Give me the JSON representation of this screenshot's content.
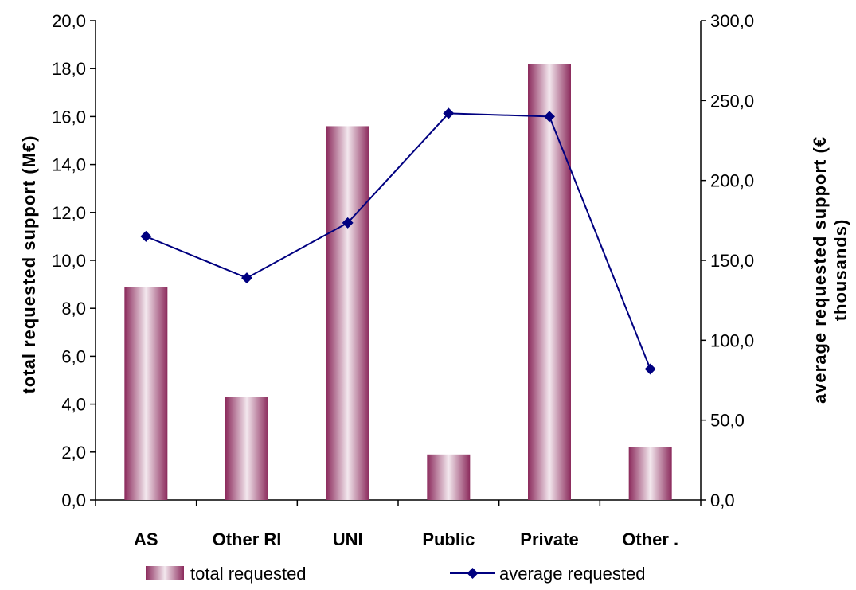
{
  "chart_data": {
    "type": "bar",
    "categories": [
      "AS",
      "Other RI",
      "UNI",
      "Public",
      "Private",
      "Other ."
    ],
    "series": [
      {
        "name": "total requested",
        "type": "bar",
        "axis": "left",
        "values": [
          8.9,
          4.3,
          15.6,
          1.9,
          18.2,
          2.2
        ]
      },
      {
        "name": "average requested",
        "type": "line",
        "axis": "right",
        "values": [
          165.0,
          139.0,
          173.5,
          242.0,
          240.0,
          82.0
        ]
      }
    ],
    "ylabel": "total requested support (M€)",
    "ylabel_right_line1": "average requested support (€",
    "ylabel_right_line2": "thousands)",
    "ylim": [
      0,
      20
    ],
    "ylim_right": [
      0,
      300
    ],
    "yticks_left": [
      "0,0",
      "2,0",
      "4,0",
      "6,0",
      "8,0",
      "10,0",
      "12,0",
      "14,0",
      "16,0",
      "18,0",
      "20,0"
    ],
    "yticks_right": [
      "0,0",
      "50,0",
      "100,0",
      "150,0",
      "200,0",
      "250,0",
      "300,0"
    ],
    "grid": false,
    "legend_position": "bottom",
    "colors": {
      "bar_dark": "#8b2a5c",
      "bar_light": "#f3e8ee",
      "line": "#000080"
    }
  }
}
